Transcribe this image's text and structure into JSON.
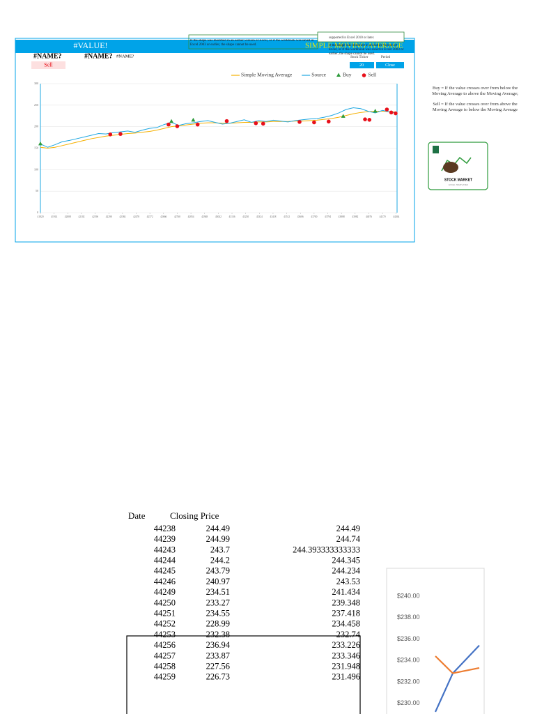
{
  "header": {
    "title": "#VALUE!",
    "fields": [
      "#NAME?",
      "#NAME?",
      "#NAME?"
    ],
    "signal": "Sell",
    "overlay_title": "SIMPLE MOVING AVERAGE",
    "notes": [
      "If the shape was modified in an earlier version of Excel, or if the workbook was saved in Excel 2003 or earlier, the shape cannot be used.",
      "supported in Excel 2010 or later."
    ],
    "controls": {
      "ticker_label": "Stock Ticker",
      "period_label": "Period",
      "period": "20",
      "price": "Close"
    }
  },
  "chart_data": [
    {
      "type": "line",
      "x": [
        41820,
        41870,
        41920,
        41970,
        42020,
        42070,
        42120,
        42170,
        42220,
        42270,
        42320,
        42370,
        42420,
        42470,
        42520,
        42570,
        42620,
        42670,
        42720,
        42770,
        42820,
        42870,
        42920,
        42970,
        43020,
        43070,
        43120,
        43170,
        43220,
        43270,
        43320,
        43370,
        43420,
        43470,
        43520,
        43570,
        43620,
        43670,
        43720,
        43770,
        43820,
        43870,
        43920,
        43970,
        44020,
        44070,
        44120,
        44170,
        44220,
        44270
      ],
      "xlim": [
        41820,
        44270
      ],
      "xticks": [
        41820,
        41914,
        42008,
        42102,
        42196,
        42290,
        42384,
        42478,
        42572,
        42666,
        42760,
        42854,
        42948,
        43042,
        43136,
        43230,
        43324,
        43418,
        43512,
        43606,
        43700,
        43794,
        43888,
        43982,
        44076,
        44170,
        44264
      ],
      "ylim": [
        0,
        300
      ],
      "yticks": [
        0,
        50,
        100,
        150,
        200,
        250,
        300
      ],
      "grid": true,
      "legend": "top",
      "series": [
        {
          "name": "Simple Moving Average",
          "color": "#f5b000",
          "values": [
            152,
            150,
            152,
            156,
            160,
            164,
            168,
            172,
            175,
            178,
            180,
            182,
            184,
            185,
            187,
            189,
            192,
            196,
            200,
            202,
            204,
            206,
            208,
            209,
            209,
            208,
            208,
            209,
            210,
            210,
            211,
            211,
            212,
            212,
            212,
            213,
            213,
            214,
            215,
            217,
            219,
            222,
            226,
            230,
            233,
            235,
            236,
            236,
            235,
            234
          ]
        },
        {
          "name": "Source",
          "color": "#1ea7e1",
          "values": [
            160,
            152,
            158,
            165,
            168,
            172,
            176,
            180,
            184,
            183,
            186,
            188,
            190,
            187,
            192,
            196,
            198,
            205,
            210,
            203,
            207,
            209,
            212,
            214,
            210,
            206,
            208,
            212,
            216,
            210,
            214,
            212,
            215,
            213,
            211,
            214,
            216,
            218,
            219,
            222,
            226,
            232,
            240,
            244,
            242,
            236,
            232,
            238,
            234,
            232
          ]
        },
        {
          "name": "Buy",
          "color": "#2e9b3c",
          "type": "scatter",
          "marker": "triangle",
          "x": [
            41820,
            42720,
            42870,
            43900,
            44120
          ],
          "values": [
            160,
            212,
            215,
            224,
            236
          ]
        },
        {
          "name": "Sell",
          "color": "#e8101a",
          "type": "scatter",
          "marker": "circle",
          "x": [
            42300,
            42370,
            42700,
            42760,
            42900,
            43100,
            43300,
            43350,
            43600,
            43700,
            43800,
            44050,
            44080,
            44200,
            44230,
            44260
          ],
          "values": [
            182,
            183,
            205,
            201,
            205,
            213,
            208,
            207,
            211,
            210,
            212,
            217,
            216,
            240,
            233,
            231
          ]
        }
      ]
    },
    {
      "type": "line",
      "categories": [
        null,
        null,
        null
      ],
      "ylim": [
        229,
        242.6
      ],
      "yticks": [
        {
          "value": 230,
          "label": "$230.00"
        },
        {
          "value": 232,
          "label": "$232.00"
        },
        {
          "value": 234,
          "label": "$234.00"
        },
        {
          "value": 236,
          "label": "$236.00"
        },
        {
          "value": 238,
          "label": "$238.00"
        },
        {
          "value": 240,
          "label": "$240.00"
        }
      ],
      "series": [
        {
          "color": "#4472c4",
          "values": [
            229.2,
            232.8,
            235.4
          ]
        },
        {
          "color": "#ed7d31",
          "values": [
            234.4,
            232.8,
            233.3
          ]
        }
      ]
    }
  ],
  "legend_notes": {
    "buy": "Buy = If the value crosses over from below the Moving Average to above the Moving Average;",
    "sell": "Sell = If the value crosses over from above the Moving Average to below the Moving Average"
  },
  "logo": {
    "title": "STOCK MARKET",
    "subtitle": "EXCEL TEMPLATES"
  },
  "table": {
    "columns": [
      "Date",
      "Closing Price"
    ],
    "rows": [
      [
        44238,
        244.49,
        244.49
      ],
      [
        44239,
        244.99,
        244.74
      ],
      [
        44243,
        243.7,
        244.393333333333
      ],
      [
        44244,
        244.2,
        244.345
      ],
      [
        44245,
        243.79,
        244.234
      ],
      [
        44246,
        240.97,
        243.53
      ],
      [
        44249,
        234.51,
        241.434
      ],
      [
        44250,
        233.27,
        239.348
      ],
      [
        44251,
        234.55,
        237.418
      ],
      [
        44252,
        228.99,
        234.458
      ],
      [
        44253,
        232.38,
        232.74
      ],
      [
        44256,
        236.94,
        233.226
      ],
      [
        44257,
        233.87,
        233.346
      ],
      [
        44258,
        227.56,
        231.948
      ],
      [
        44259,
        226.73,
        231.496
      ]
    ]
  }
}
